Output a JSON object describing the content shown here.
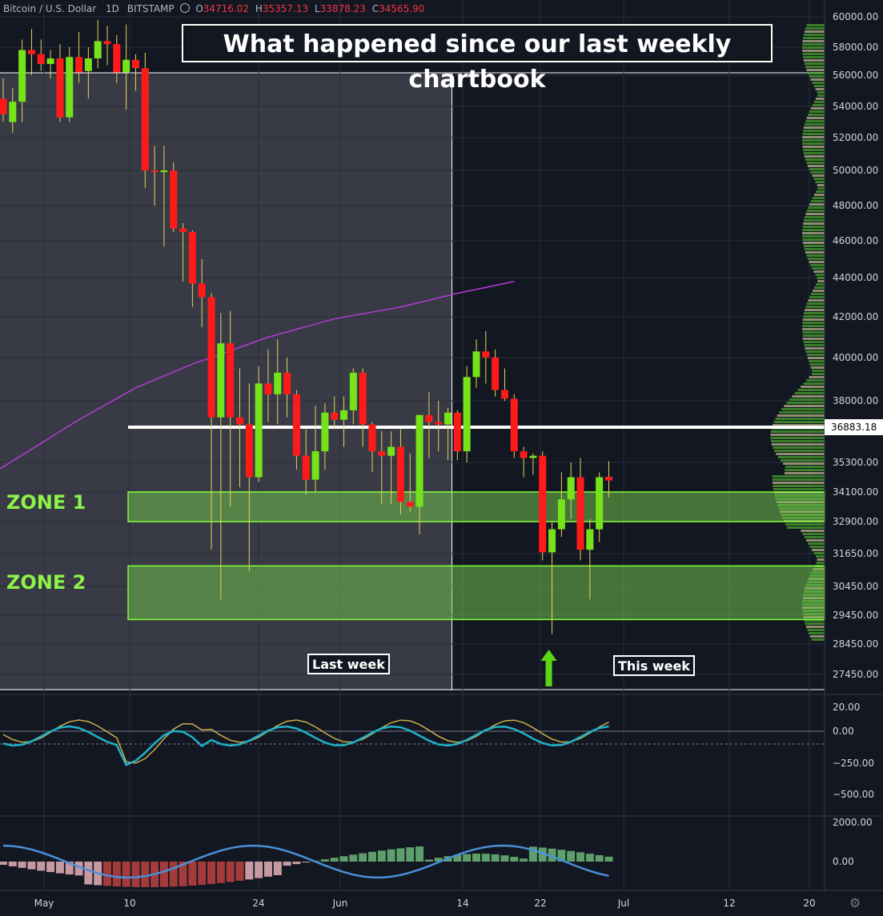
{
  "legend": {
    "symbol": "Bitcoin / U.S. Dollar",
    "interval": "1D",
    "exchange": "BITSTAMP",
    "o_label": "O",
    "o": "34716.02",
    "h_label": "H",
    "h": "35357.13",
    "l_label": "L",
    "l": "33878.23",
    "c_label": "C",
    "c": "34565.90"
  },
  "annotations": {
    "title": "What happened since our last weekly chartbook",
    "zone1": "ZONE 1",
    "zone2": "ZONE 2",
    "last_week": "Last week",
    "this_week": "This week",
    "price_tag": "36883.18"
  },
  "colors": {
    "background": "#131722",
    "up": "#76e31a",
    "down": "#ff1a1a",
    "ma": "#b43ad6",
    "zone": "#6fd14a",
    "grid": "#2a2e39"
  },
  "chart_data": [
    {
      "type": "candlestick",
      "title": "Bitcoin / U.S. Dollar",
      "x_ticks": [
        "May",
        "10",
        "24",
        "Jun",
        "14",
        "22",
        "Jul",
        "12",
        "20"
      ],
      "y_ticks": [
        60000,
        58000,
        56000,
        54000,
        52000,
        50000,
        48000,
        46000,
        44000,
        42000,
        40000,
        38000,
        36883.18,
        35300,
        34100,
        32900,
        31650,
        30450,
        29450,
        28450,
        27450
      ],
      "ylim": [
        27000,
        60500
      ],
      "candles": [
        [
          54500,
          55800,
          53000,
          53500
        ],
        [
          53000,
          55200,
          52300,
          54300
        ],
        [
          54300,
          58500,
          53000,
          57800
        ],
        [
          57800,
          59200,
          56000,
          57500
        ],
        [
          57500,
          58500,
          56300,
          56800
        ],
        [
          56800,
          57800,
          55800,
          57200
        ],
        [
          57200,
          58200,
          53000,
          53300
        ],
        [
          53300,
          58000,
          53000,
          57300
        ],
        [
          57300,
          59000,
          55500,
          56200
        ],
        [
          56300,
          58000,
          54500,
          57200
        ],
        [
          57200,
          59800,
          56500,
          58400
        ],
        [
          58400,
          59400,
          56700,
          58200
        ],
        [
          58200,
          58800,
          55500,
          56200
        ],
        [
          56200,
          59500,
          53800,
          57100
        ],
        [
          57100,
          57500,
          55000,
          56500
        ],
        [
          56500,
          57600,
          49000,
          50000
        ],
        [
          50000,
          51500,
          48000,
          49900
        ],
        [
          49900,
          51500,
          45700,
          50000
        ],
        [
          50000,
          50500,
          46500,
          46700
        ],
        [
          46700,
          47000,
          43800,
          46500
        ],
        [
          46500,
          46600,
          42500,
          43700
        ],
        [
          43700,
          45000,
          41500,
          43000
        ],
        [
          43000,
          43200,
          31800,
          37300
        ],
        [
          37300,
          42200,
          30000,
          40700
        ],
        [
          40700,
          42300,
          33500,
          37300
        ],
        [
          37300,
          39500,
          34300,
          37000
        ],
        [
          37000,
          38800,
          31000,
          34700
        ],
        [
          34700,
          39600,
          34500,
          38800
        ],
        [
          38800,
          40400,
          37100,
          38300
        ],
        [
          38300,
          40900,
          37000,
          39300
        ],
        [
          39300,
          40000,
          37300,
          38300
        ],
        [
          38300,
          38500,
          35000,
          35600
        ],
        [
          35600,
          36800,
          34000,
          34600
        ],
        [
          34600,
          37800,
          34100,
          35800
        ],
        [
          35800,
          37900,
          35000,
          37500
        ],
        [
          37500,
          38200,
          36800,
          37200
        ],
        [
          37200,
          38200,
          36000,
          37600
        ],
        [
          37600,
          39500,
          37000,
          39300
        ],
        [
          39300,
          39500,
          36000,
          37000
        ],
        [
          37000,
          37100,
          34900,
          35800
        ],
        [
          35800,
          36700,
          33600,
          35600
        ],
        [
          35600,
          36700,
          33600,
          36000
        ],
        [
          36000,
          36800,
          33200,
          33700
        ],
        [
          33700,
          35700,
          33300,
          33500
        ],
        [
          33500,
          37300,
          32400,
          37400
        ],
        [
          37400,
          38400,
          35500,
          37100
        ],
        [
          37100,
          38000,
          35800,
          37000
        ],
        [
          37000,
          37700,
          35400,
          37500
        ],
        [
          37500,
          37600,
          35400,
          35800
        ],
        [
          35800,
          39600,
          35300,
          39100
        ],
        [
          39100,
          40900,
          38600,
          40300
        ],
        [
          40300,
          41300,
          38800,
          40000
        ],
        [
          40000,
          40400,
          38200,
          38500
        ],
        [
          38500,
          39500,
          38000,
          38100
        ],
        [
          38100,
          38300,
          35500,
          35800
        ],
        [
          35800,
          36000,
          34700,
          35500
        ],
        [
          35500,
          35700,
          34800,
          35600
        ],
        [
          35600,
          35800,
          31400,
          31700
        ],
        [
          31700,
          32900,
          28800,
          32600
        ],
        [
          32600,
          34900,
          32300,
          33800
        ],
        [
          33800,
          35300,
          33000,
          34700
        ],
        [
          34700,
          35500,
          31400,
          31800
        ],
        [
          31800,
          33000,
          30000,
          32600
        ],
        [
          32600,
          34900,
          32100,
          34700
        ],
        [
          34716.02,
          35357.13,
          33878.23,
          34565.9
        ]
      ],
      "moving_average": [
        [
          -0.5,
          35000
        ],
        [
          8,
          37200
        ],
        [
          14,
          38600
        ],
        [
          20,
          39700
        ],
        [
          28,
          41000
        ],
        [
          35,
          41900
        ],
        [
          42,
          42500
        ],
        [
          48,
          43200
        ],
        [
          54,
          43800
        ]
      ],
      "horizontal_line": 36883.18,
      "zones": [
        {
          "name": "ZONE 1",
          "from": 32900,
          "to": 34100
        },
        {
          "name": "ZONE 2",
          "from": 29300,
          "to": 31200
        }
      ],
      "last_week_range": [
        -0.5,
        47
      ],
      "arrow_at_bar": 58
    },
    {
      "type": "line",
      "y_ticks": [
        20,
        0,
        -250,
        -500
      ],
      "ylim": [
        -650,
        60
      ]
    },
    {
      "type": "area",
      "y_ticks": [
        2000,
        0
      ],
      "ylim": [
        -1700,
        2200
      ]
    }
  ]
}
